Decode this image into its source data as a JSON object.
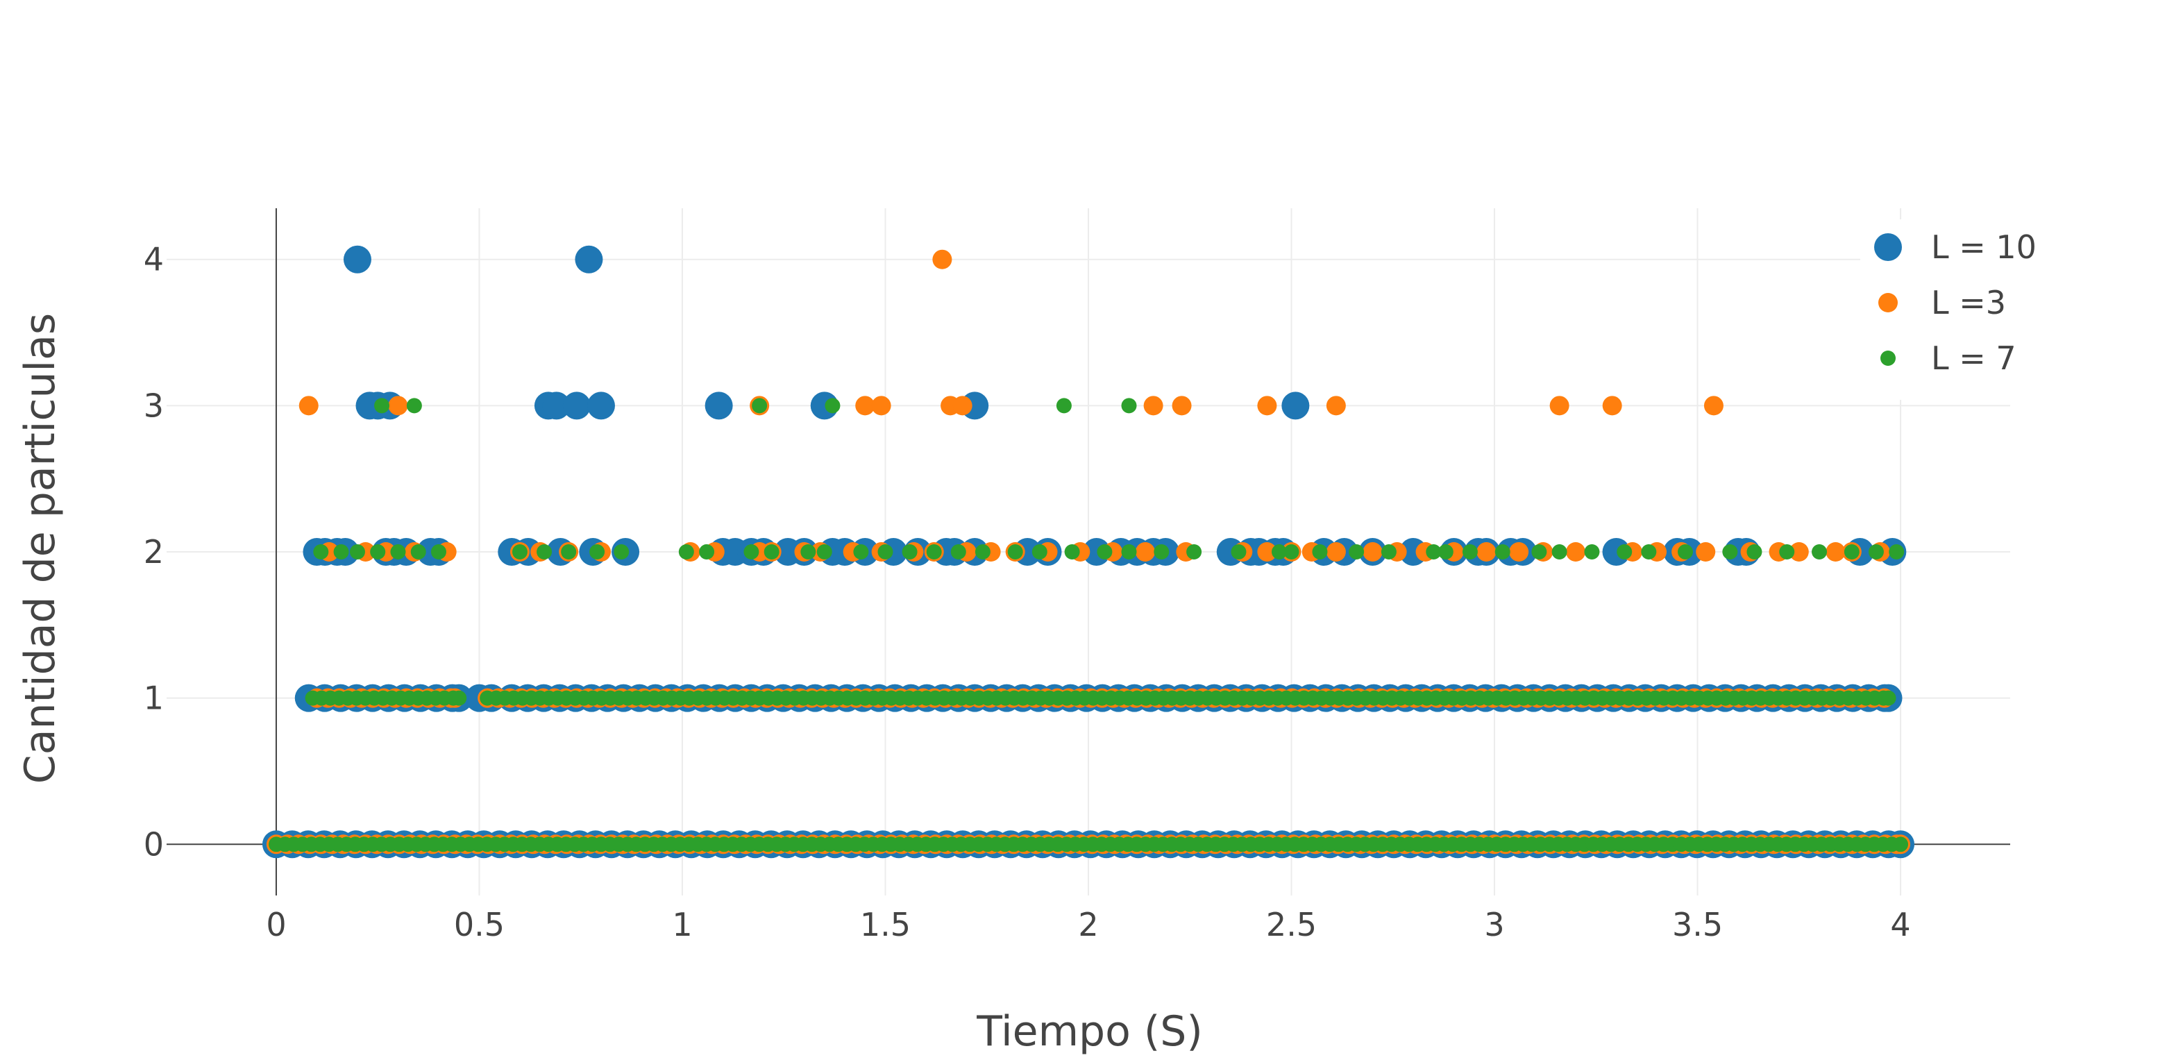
{
  "chart_data": {
    "type": "scatter",
    "title": "",
    "xlabel": "Tiempo (S)",
    "ylabel": "Cantidad de particulas",
    "xlim": [
      -0.27,
      4.27
    ],
    "ylim": [
      -0.35,
      4.35
    ],
    "xticks": [
      0,
      0.5,
      1,
      1.5,
      2,
      2.5,
      3,
      3.5,
      4
    ],
    "xtick_labels": [
      "0",
      "0.5",
      "1",
      "1.5",
      "2",
      "2.5",
      "3",
      "3.5",
      "4"
    ],
    "yticks": [
      0,
      1,
      2,
      3,
      4
    ],
    "ytick_labels": [
      "0",
      "1",
      "2",
      "3",
      "4"
    ],
    "grid": true,
    "legend_position": "top-right",
    "series": [
      {
        "name": "L = 10",
        "color": "#1f77b4",
        "marker_size": "large",
        "points": [
          {
            "level": 0,
            "ranges": [
              [
                0.0,
                4.0
              ]
            ]
          },
          {
            "level": 1,
            "ranges": [
              [
                0.08,
                0.45
              ],
              [
                0.5,
                0.53
              ],
              [
                0.58,
                3.97
              ]
            ]
          },
          {
            "level": 2,
            "x": [
              0.1,
              0.12,
              0.15,
              0.17,
              0.27,
              0.29,
              0.32,
              0.38,
              0.4,
              0.58,
              0.62,
              0.7,
              0.78,
              0.86,
              1.1,
              1.13,
              1.17,
              1.2,
              1.26,
              1.3,
              1.37,
              1.4,
              1.45,
              1.52,
              1.58,
              1.65,
              1.67,
              1.72,
              1.85,
              1.9,
              2.02,
              2.08,
              2.12,
              2.16,
              2.19,
              2.35,
              2.4,
              2.42,
              2.46,
              2.48,
              2.58,
              2.63,
              2.7,
              2.8,
              2.9,
              2.96,
              2.98,
              3.04,
              3.07,
              3.3,
              3.45,
              3.48,
              3.6,
              3.62,
              3.9,
              3.98
            ]
          },
          {
            "level": 3,
            "x": [
              0.23,
              0.25,
              0.28,
              0.67,
              0.69,
              0.74,
              0.8,
              1.09,
              1.35,
              1.72,
              2.51
            ]
          },
          {
            "level": 4,
            "x": [
              0.2,
              0.77
            ]
          }
        ]
      },
      {
        "name": "L =3",
        "color": "#ff7f0e",
        "marker_size": "medium",
        "points": [
          {
            "level": 0,
            "ranges": [
              [
                0.0,
                4.0
              ]
            ]
          },
          {
            "level": 1,
            "ranges": [
              [
                0.1,
                0.44
              ],
              [
                0.52,
                3.96
              ]
            ]
          },
          {
            "level": 2,
            "x": [
              0.13,
              0.22,
              0.27,
              0.34,
              0.42,
              0.6,
              0.65,
              0.72,
              0.8,
              1.02,
              1.08,
              1.19,
              1.22,
              1.3,
              1.34,
              1.42,
              1.49,
              1.57,
              1.62,
              1.7,
              1.76,
              1.82,
              1.9,
              1.98,
              2.06,
              2.14,
              2.24,
              2.38,
              2.44,
              2.5,
              2.55,
              2.61,
              2.7,
              2.76,
              2.83,
              2.9,
              2.98,
              3.06,
              3.12,
              3.2,
              3.34,
              3.4,
              3.46,
              3.52,
              3.63,
              3.7,
              3.75,
              3.84,
              3.88,
              3.95
            ]
          },
          {
            "level": 3,
            "x": [
              0.08,
              0.3,
              1.19,
              1.45,
              1.49,
              1.66,
              1.69,
              2.16,
              2.23,
              2.44,
              2.61,
              3.16,
              3.29,
              3.54
            ]
          },
          {
            "level": 4,
            "x": [
              1.64
            ]
          }
        ]
      },
      {
        "name": "L = 7",
        "color": "#2ca02c",
        "marker_size": "small",
        "points": [
          {
            "level": 0,
            "ranges": [
              [
                0.0,
                4.0
              ]
            ]
          },
          {
            "level": 1,
            "ranges": [
              [
                0.09,
                0.45
              ],
              [
                0.52,
                3.97
              ]
            ]
          },
          {
            "level": 2,
            "x": [
              0.11,
              0.16,
              0.2,
              0.25,
              0.3,
              0.35,
              0.4,
              0.6,
              0.66,
              0.72,
              0.79,
              0.85,
              1.01,
              1.06,
              1.17,
              1.22,
              1.31,
              1.35,
              1.44,
              1.5,
              1.56,
              1.62,
              1.68,
              1.74,
              1.82,
              1.88,
              1.96,
              2.04,
              2.1,
              2.18,
              2.26,
              2.37,
              2.47,
              2.5,
              2.57,
              2.66,
              2.74,
              2.85,
              2.88,
              2.94,
              3.02,
              3.11,
              3.16,
              3.24,
              3.32,
              3.38,
              3.47,
              3.58,
              3.64,
              3.72,
              3.8,
              3.88,
              3.94,
              3.99
            ]
          },
          {
            "level": 3,
            "x": [
              0.26,
              0.34,
              1.19,
              1.37,
              1.94,
              2.1
            ]
          }
        ]
      }
    ]
  }
}
